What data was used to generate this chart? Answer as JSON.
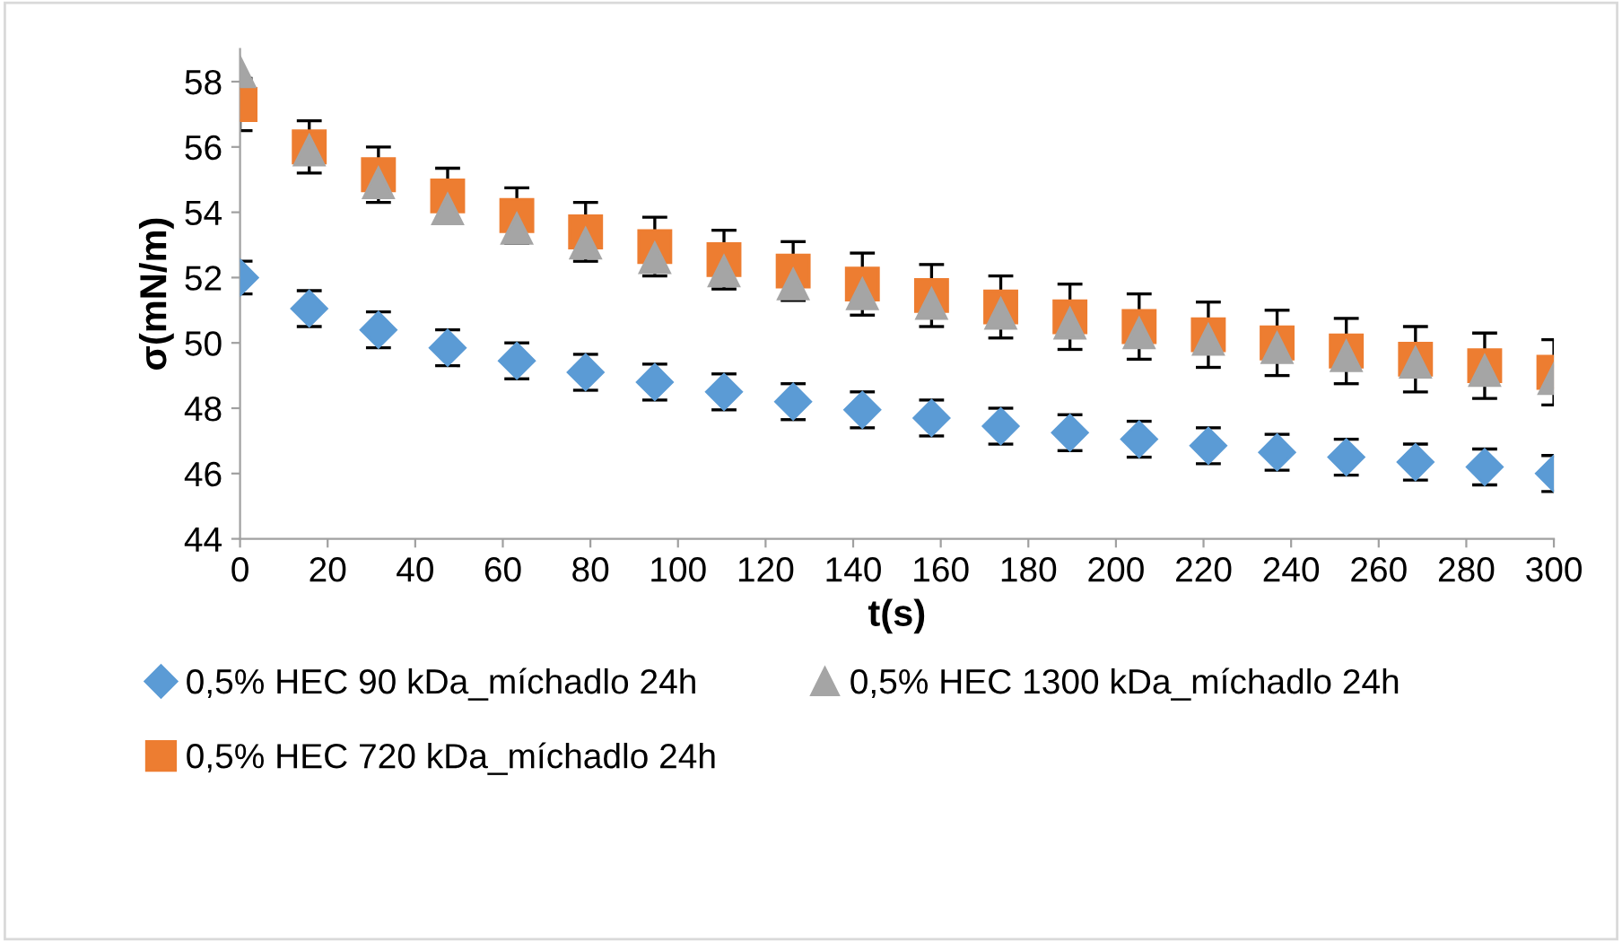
{
  "chart_data": {
    "type": "scatter",
    "xlabel": "t(s)",
    "ylabel": "σ(mN/m)",
    "x": [
      0,
      15.8,
      31.6,
      47.4,
      63.2,
      78.9,
      94.7,
      110.5,
      126.3,
      142.1,
      157.9,
      173.7,
      189.5,
      205.3,
      221.1,
      236.8,
      252.6,
      268.4,
      284.2,
      300
    ],
    "series": [
      {
        "name": "0,5% HEC 90 kDa_míchadlo 24h",
        "color": "#5b9bd5",
        "marker": "diamond",
        "values": [
          52.0,
          51.05,
          50.4,
          49.85,
          49.45,
          49.1,
          48.8,
          48.5,
          48.2,
          47.95,
          47.7,
          47.45,
          47.25,
          47.05,
          46.85,
          46.65,
          46.5,
          46.35,
          46.2,
          46.0
        ],
        "errors": [
          0.5,
          0.55,
          0.55,
          0.55,
          0.55,
          0.55,
          0.55,
          0.55,
          0.55,
          0.55,
          0.55,
          0.55,
          0.55,
          0.55,
          0.55,
          0.55,
          0.55,
          0.55,
          0.55,
          0.55
        ]
      },
      {
        "name": "0,5% HEC 720 kDa_míchadlo 24h",
        "color": "#ed7d31",
        "marker": "square",
        "values": [
          57.3,
          56.0,
          55.15,
          54.5,
          53.9,
          53.4,
          52.95,
          52.55,
          52.2,
          51.8,
          51.45,
          51.1,
          50.8,
          50.5,
          50.25,
          50.0,
          49.75,
          49.5,
          49.3,
          49.1
        ],
        "errors": [
          0.8,
          0.8,
          0.85,
          0.85,
          0.85,
          0.9,
          0.9,
          0.9,
          0.9,
          0.95,
          0.95,
          0.95,
          1.0,
          1.0,
          1.0,
          1.0,
          1.0,
          1.0,
          1.0,
          1.0
        ]
      },
      {
        "name": "0,5% HEC 1300 kDa_míchadlo 24h",
        "color": "#a5a5a5",
        "marker": "triangle",
        "values": [
          58.3,
          55.9,
          54.9,
          54.1,
          53.5,
          53.05,
          52.6,
          52.2,
          51.8,
          51.5,
          51.2,
          50.9,
          50.6,
          50.3,
          50.1,
          49.85,
          49.6,
          49.4,
          49.15,
          48.9
        ]
      }
    ],
    "xlim": [
      0,
      300
    ],
    "xticks": [
      0,
      20,
      40,
      60,
      80,
      100,
      120,
      140,
      160,
      180,
      200,
      220,
      240,
      260,
      280,
      300
    ],
    "ylim": [
      44,
      59
    ],
    "yticks": [
      44,
      46,
      48,
      50,
      52,
      54,
      56,
      58
    ],
    "grid": false,
    "legend": "bottom"
  }
}
